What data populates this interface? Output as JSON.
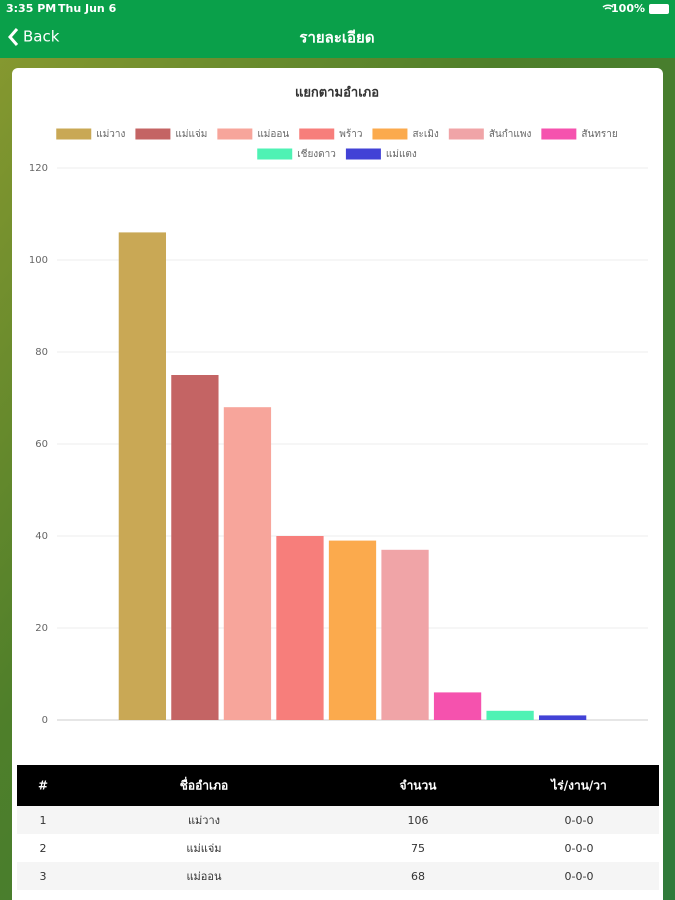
{
  "status_bar": {
    "time": "3:35 PM",
    "date": "Thu Jun 6",
    "battery": "100%"
  },
  "nav": {
    "back": "Back",
    "title": "รายละเอียด"
  },
  "chart_data": {
    "type": "bar",
    "title": "แยกตามอำเภอ",
    "series": [
      {
        "name": "แม่วาง",
        "color": "#c9a855",
        "values": [
          106
        ]
      },
      {
        "name": "แม่แจ่ม",
        "color": "#c46464",
        "values": [
          75
        ]
      },
      {
        "name": "แม่ออน",
        "color": "#f7a59b",
        "values": [
          68
        ]
      },
      {
        "name": "พร้าว",
        "color": "#f77e7b",
        "values": [
          40
        ]
      },
      {
        "name": "สะเมิง",
        "color": "#fbaa4d",
        "values": [
          39
        ]
      },
      {
        "name": "สันกำแพง",
        "color": "#f0a4a7",
        "values": [
          37
        ]
      },
      {
        "name": "สันทราย",
        "color": "#f552ae",
        "values": [
          6
        ]
      },
      {
        "name": "เชียงดาว",
        "color": "#4ff2b4",
        "values": [
          2
        ]
      },
      {
        "name": "แม่แตง",
        "color": "#4242d6",
        "values": [
          1
        ]
      }
    ],
    "ylim": [
      0,
      120
    ],
    "yticks": [
      0,
      20,
      40,
      60,
      80,
      100,
      120
    ],
    "grid": true
  },
  "table": {
    "headers": [
      "#",
      "ชื่ออำเภอ",
      "จำนวน",
      "ไร่/งาน/วา"
    ],
    "rows": [
      [
        "1",
        "แม่วาง",
        "106",
        "0-0-0"
      ],
      [
        "2",
        "แม่แจ่ม",
        "75",
        "0-0-0"
      ],
      [
        "3",
        "แม่ออน",
        "68",
        "0-0-0"
      ]
    ]
  }
}
